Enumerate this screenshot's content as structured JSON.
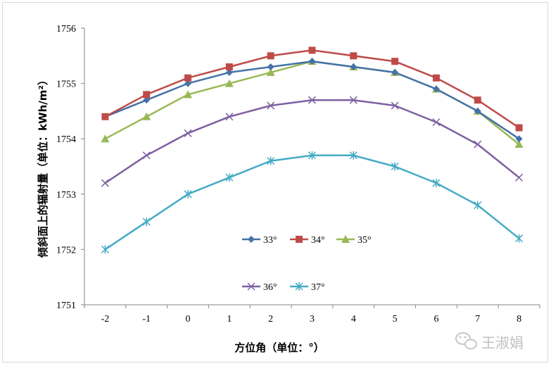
{
  "chart_data": {
    "type": "line",
    "title": "",
    "xlabel": "方位角（单位：°）",
    "ylabel": "倾斜面上的辐射量（单位：kWh/m²）",
    "x": [
      -2,
      -1,
      0,
      1,
      2,
      3,
      4,
      5,
      6,
      7,
      8
    ],
    "ylim": [
      1751,
      1756
    ],
    "yticks": [
      1751,
      1752,
      1753,
      1754,
      1755,
      1756
    ],
    "grid": false,
    "legend_position": "inside-bottom",
    "series": [
      {
        "name": "33°",
        "color": "#4572A7",
        "marker": "diamond",
        "values": [
          1754.4,
          1754.7,
          1755.0,
          1755.2,
          1755.3,
          1755.4,
          1755.3,
          1755.2,
          1754.9,
          1754.5,
          1754.0
        ]
      },
      {
        "name": "34°",
        "color": "#BE4B48",
        "marker": "square",
        "values": [
          1754.4,
          1754.8,
          1755.1,
          1755.3,
          1755.5,
          1755.6,
          1755.5,
          1755.4,
          1755.1,
          1754.7,
          1754.2
        ]
      },
      {
        "name": "35°",
        "color": "#98B954",
        "marker": "triangle",
        "values": [
          1754.0,
          1754.4,
          1754.8,
          1755.0,
          1755.2,
          1755.4,
          1755.3,
          1755.2,
          1754.9,
          1754.5,
          1753.9
        ]
      },
      {
        "name": "36°",
        "color": "#7D60A0",
        "marker": "x",
        "values": [
          1753.2,
          1753.7,
          1754.1,
          1754.4,
          1754.6,
          1754.7,
          1754.7,
          1754.6,
          1754.3,
          1753.9,
          1753.3
        ]
      },
      {
        "name": "37°",
        "color": "#46AAC5",
        "marker": "star",
        "values": [
          1752.0,
          1752.5,
          1753.0,
          1753.3,
          1753.6,
          1753.7,
          1753.7,
          1753.5,
          1753.2,
          1752.8,
          1752.2
        ]
      }
    ]
  },
  "watermark": {
    "text": "王淑娟",
    "icon": "wechat-icon"
  }
}
